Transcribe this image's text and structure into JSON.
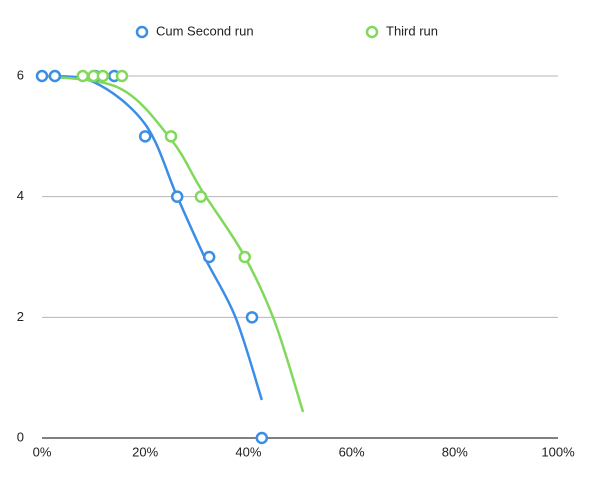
{
  "chart_data": {
    "type": "scatter",
    "xlim": [
      0,
      1
    ],
    "xticks": [
      {
        "value": 0,
        "label": "0%"
      },
      {
        "value": 0.2,
        "label": "20%"
      },
      {
        "value": 0.4,
        "label": "40%"
      },
      {
        "value": 0.6,
        "label": "60%"
      },
      {
        "value": 0.8,
        "label": "80%"
      },
      {
        "value": 1,
        "label": "100%"
      }
    ],
    "ylim": [
      0,
      6
    ],
    "yticks": [
      0,
      2,
      4,
      6
    ],
    "grid": true,
    "legend": "top",
    "series": [
      {
        "name": "Cum Second run",
        "color": "#3a8ee6",
        "x": [
          0,
          0.025,
          0.103,
          0.14,
          0.2,
          0.262,
          0.324,
          0.407,
          0.426
        ],
        "values": [
          6,
          6,
          6,
          6,
          5,
          4,
          3,
          2,
          0
        ],
        "trendline": {
          "x": [
            0,
            0.1,
            0.2,
            0.262,
            0.315,
            0.375,
            0.426
          ],
          "values": [
            6,
            5.9,
            5.2,
            4,
            3,
            2,
            0.63
          ]
        }
      },
      {
        "name": "Third run",
        "color": "#80d95a",
        "x": [
          0.079,
          0.1,
          0.118,
          0.155,
          0.25,
          0.308,
          0.393
        ],
        "values": [
          6,
          6,
          6,
          6,
          5,
          4,
          3
        ],
        "trendline": {
          "x": [
            0,
            0.15,
            0.25,
            0.31,
            0.39,
            0.45,
            0.506
          ],
          "values": [
            6,
            5.8,
            4.95,
            4.1,
            3.05,
            1.95,
            0.43
          ]
        }
      }
    ]
  }
}
